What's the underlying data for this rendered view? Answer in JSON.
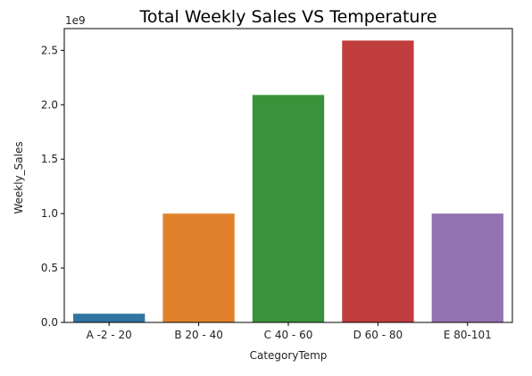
{
  "chart_data": {
    "type": "bar",
    "title": "Total Weekly Sales VS Temperature",
    "xlabel": "CategoryTemp",
    "ylabel": "Weekly_Sales",
    "y_exponent_label": "1e9",
    "y_scale": 1000000000,
    "categories": [
      "A -2 - 20",
      "B 20 - 40",
      "C 40 - 60",
      "D 60 - 80",
      "E 80-101"
    ],
    "values": [
      80000000,
      1000000000,
      2090000000,
      2590000000,
      1000000000
    ],
    "colors": [
      "#3274a1",
      "#e1812c",
      "#3a923a",
      "#c03d3e",
      "#9372b2"
    ],
    "ylim": [
      0,
      2700000000
    ],
    "yticks": [
      0,
      0.5,
      1.0,
      1.5,
      2.0,
      2.5
    ],
    "ytick_labels": [
      "0.0",
      "0.5",
      "1.0",
      "1.5",
      "2.0",
      "2.5"
    ],
    "grid": false,
    "legend": "none"
  }
}
